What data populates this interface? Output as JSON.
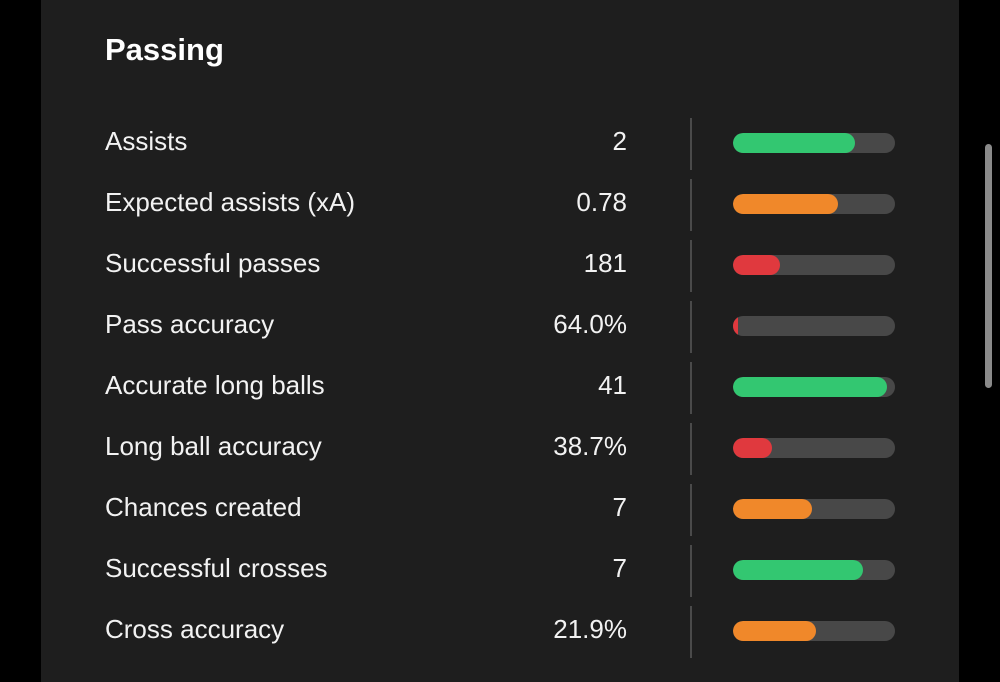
{
  "section": {
    "title": "Passing"
  },
  "colors": {
    "good": "#33c771",
    "average": "#f0882a",
    "poor": "#e0393e",
    "track": "#484848"
  },
  "rows": [
    {
      "label": "Assists",
      "value": "2",
      "fill": 0.75,
      "rating": "good"
    },
    {
      "label": "Expected assists (xA)",
      "value": "0.78",
      "fill": 0.65,
      "rating": "average"
    },
    {
      "label": "Successful passes",
      "value": "181",
      "fill": 0.29,
      "rating": "poor"
    },
    {
      "label": "Pass accuracy",
      "value": "64.0%",
      "fill": 0.03,
      "rating": "poor"
    },
    {
      "label": "Accurate long balls",
      "value": "41",
      "fill": 0.95,
      "rating": "good"
    },
    {
      "label": "Long ball accuracy",
      "value": "38.7%",
      "fill": 0.24,
      "rating": "poor"
    },
    {
      "label": "Chances created",
      "value": "7",
      "fill": 0.49,
      "rating": "average"
    },
    {
      "label": "Successful crosses",
      "value": "7",
      "fill": 0.8,
      "rating": "good"
    },
    {
      "label": "Cross accuracy",
      "value": "21.9%",
      "fill": 0.51,
      "rating": "average"
    }
  ]
}
